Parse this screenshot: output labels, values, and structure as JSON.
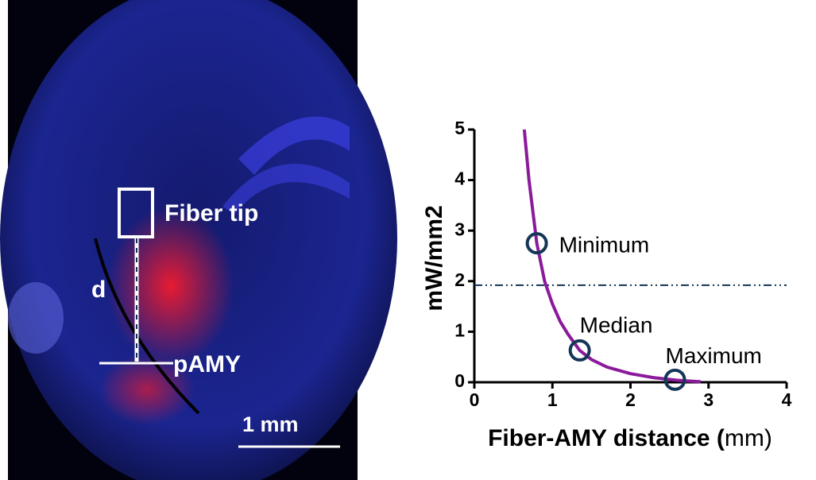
{
  "image": {
    "labels": [
      "Fiber tip",
      "d",
      "pAMY",
      "1 mm"
    ]
  },
  "chart_data": {
    "type": "line",
    "x_label": "Fiber-AMY distance (",
    "x_label_unit": "mm)",
    "y_label": "mW/mm2",
    "xlim": [
      0,
      4
    ],
    "xticks": [
      0,
      1,
      2,
      3,
      4
    ],
    "ylim": [
      0,
      5
    ],
    "yticks": [
      0,
      1,
      2,
      3,
      4,
      5
    ],
    "series": [
      {
        "color": "#8b1a9b",
        "x": [
          0.64,
          0.7,
          0.8,
          0.9,
          1.0,
          1.1,
          1.2,
          1.35,
          1.5,
          1.7,
          2.0,
          2.3,
          2.6,
          2.9
        ],
        "values": [
          5,
          4.0,
          2.75,
          2.0,
          1.55,
          1.2,
          0.95,
          0.63,
          0.45,
          0.3,
          0.17,
          0.09,
          0.04,
          0.01
        ]
      }
    ],
    "points": {
      "color": "#143656",
      "labels": [
        "Minimum",
        "Median",
        "Maximum"
      ],
      "x": [
        0.8,
        1.35,
        2.57
      ],
      "values": [
        2.75,
        0.63,
        0.05
      ]
    },
    "threshold": {
      "value": 1.92,
      "color": "#143656"
    }
  }
}
